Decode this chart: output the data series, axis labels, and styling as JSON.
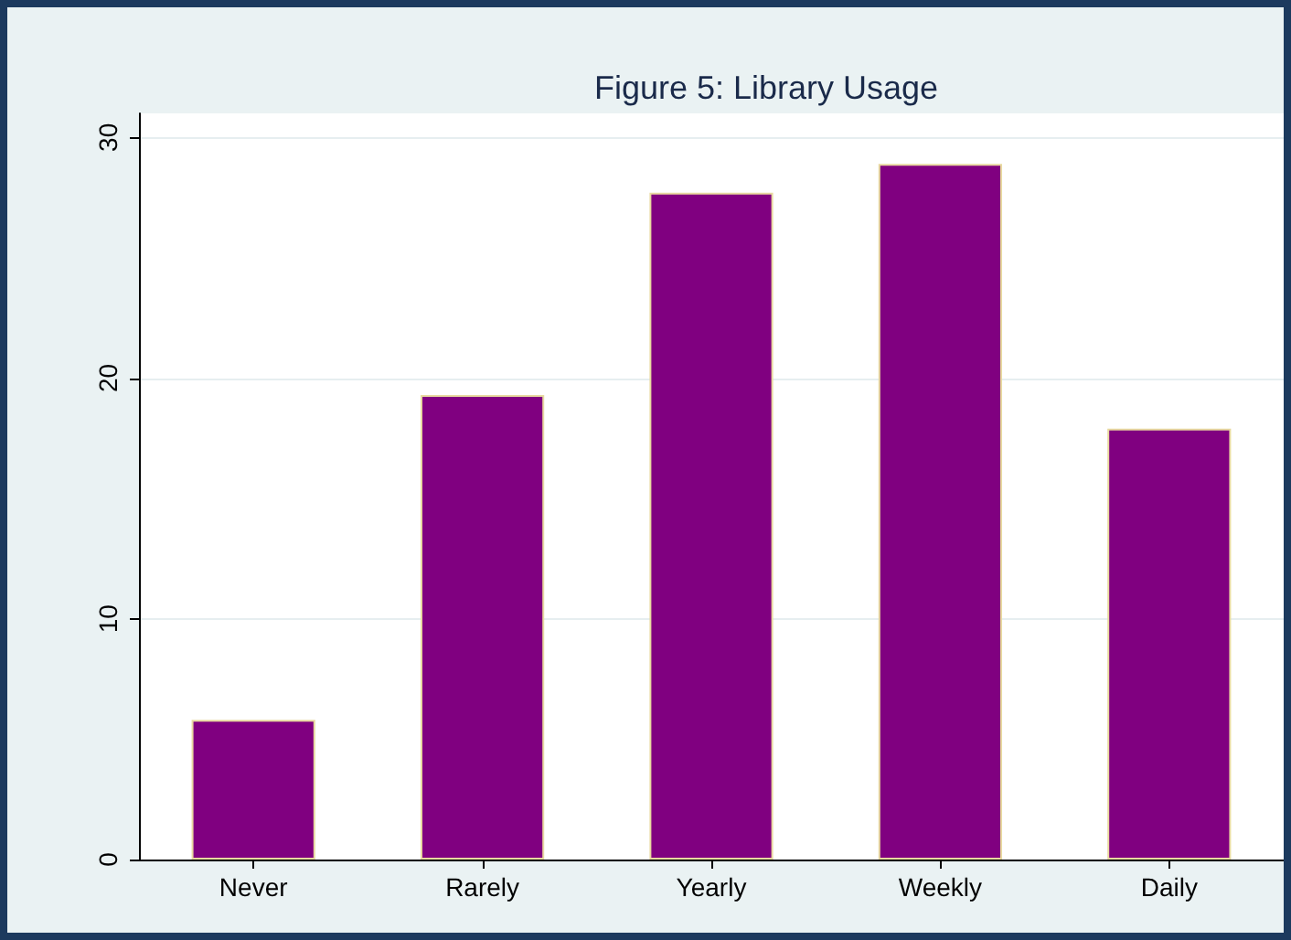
{
  "chart_data": {
    "type": "bar",
    "title": "Figure 5: Library Usage",
    "categories": [
      "Never",
      "Rarely",
      "Yearly",
      "Weekly",
      "Daily"
    ],
    "values": [
      5.8,
      19.3,
      27.7,
      28.9,
      17.9
    ],
    "color": "#800080",
    "ylim": [
      0,
      31
    ],
    "yticks": [
      0,
      10,
      20,
      30
    ],
    "grid": "y"
  }
}
